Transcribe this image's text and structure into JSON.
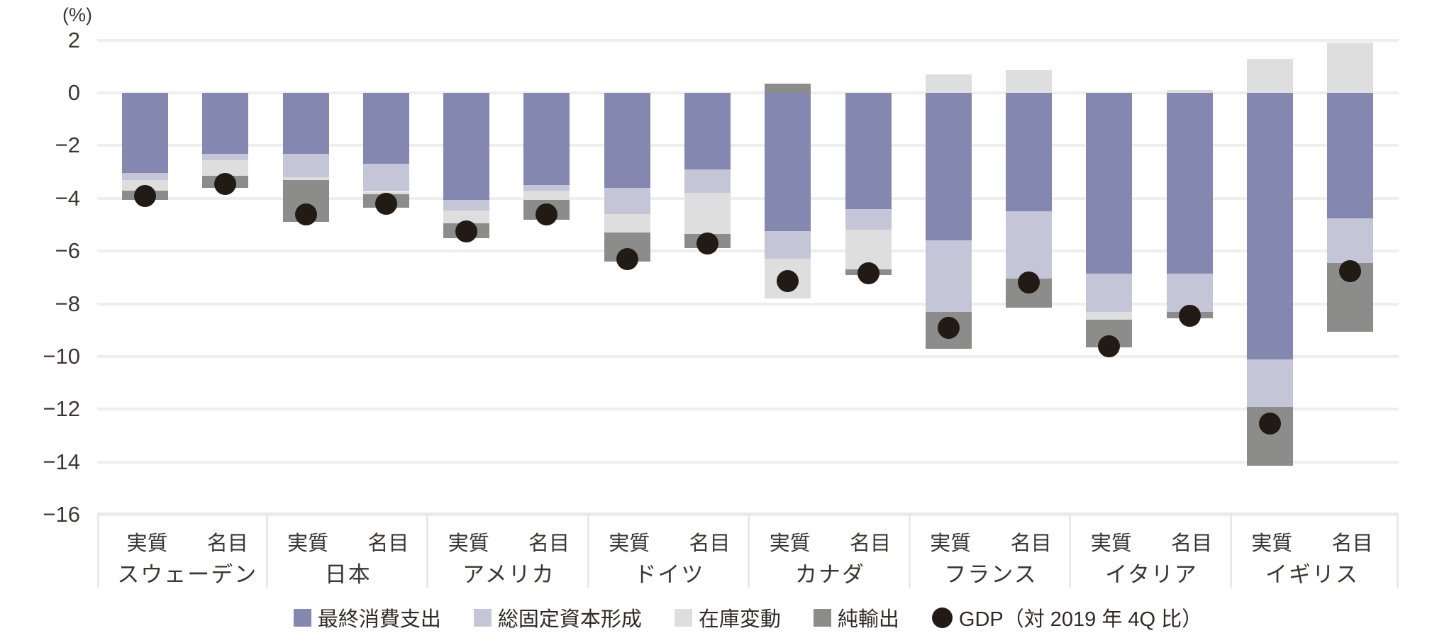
{
  "chart_data": {
    "type": "bar",
    "subtype": "stacked-bar-with-point-overlay",
    "title": "",
    "ylabel_unit": "(%)",
    "ylim": [
      -16,
      2
    ],
    "yticks": [
      2,
      0,
      -2,
      -4,
      -6,
      -8,
      -10,
      -12,
      -14,
      -16
    ],
    "grid": true,
    "legend_position": "bottom-center",
    "bar_type_labels": [
      "実質",
      "名目"
    ],
    "colors": {
      "consumption": "#8487b0",
      "gfcf": "#c4c6d7",
      "inventory": "#dedede",
      "net_exports": "#8c8c8a",
      "gdp": "#221a14",
      "gridline": "#eeeeee",
      "divider": "#e9e9e9"
    },
    "legend": [
      {
        "key": "consumption",
        "label": "最終消費支出"
      },
      {
        "key": "gfcf",
        "label": "総固定資本形成"
      },
      {
        "key": "inventory",
        "label": "在庫変動"
      },
      {
        "key": "net_exports",
        "label": "純輸出"
      },
      {
        "key": "gdp",
        "label": "GDP（対 2019 年 4Q 比）"
      }
    ],
    "segment_order": [
      "consumption",
      "gfcf",
      "inventory",
      "net_exports"
    ],
    "groups": [
      {
        "country": "スウェーデン",
        "bars": [
          {
            "label": "実質",
            "consumption": -3.05,
            "gfcf": -0.25,
            "inventory": -0.4,
            "net_exports": -0.35,
            "gdp": -3.9
          },
          {
            "label": "名目",
            "consumption": -2.3,
            "gfcf": -0.25,
            "inventory": -0.6,
            "net_exports": -0.45,
            "gdp": -3.45
          }
        ]
      },
      {
        "country": "日本",
        "bars": [
          {
            "label": "実質",
            "consumption": -2.3,
            "gfcf": -0.9,
            "inventory": -0.1,
            "net_exports": -1.6,
            "gdp": -4.6
          },
          {
            "label": "名目",
            "consumption": -2.7,
            "gfcf": -1.05,
            "inventory": -0.1,
            "net_exports": -0.5,
            "gdp": -4.2
          }
        ]
      },
      {
        "country": "アメリカ",
        "bars": [
          {
            "label": "実質",
            "consumption": -4.05,
            "gfcf": -0.4,
            "inventory": -0.5,
            "net_exports": -0.55,
            "gdp": -5.25
          },
          {
            "label": "名目",
            "consumption": -3.5,
            "gfcf": -0.2,
            "inventory": -0.35,
            "net_exports": -0.75,
            "gdp": -4.6
          }
        ]
      },
      {
        "country": "ドイツ",
        "bars": [
          {
            "label": "実質",
            "consumption": -3.6,
            "gfcf": -1.0,
            "inventory": -0.7,
            "net_exports": -1.1,
            "gdp": -6.3
          },
          {
            "label": "名目",
            "consumption": -2.9,
            "gfcf": -0.9,
            "inventory": -1.55,
            "net_exports": -0.55,
            "gdp": -5.7
          }
        ]
      },
      {
        "country": "カナダ",
        "bars": [
          {
            "label": "実質",
            "consumption": -5.25,
            "gfcf": -1.05,
            "inventory": -1.5,
            "net_exports": 0.35,
            "gdp": -7.15
          },
          {
            "label": "名目",
            "consumption": -4.4,
            "gfcf": -0.8,
            "inventory": -1.5,
            "net_exports": -0.2,
            "gdp": -6.85
          }
        ]
      },
      {
        "country": "フランス",
        "bars": [
          {
            "label": "実質",
            "consumption": -5.6,
            "gfcf": -2.7,
            "inventory": 0.7,
            "net_exports": -1.4,
            "gdp": -8.9
          },
          {
            "label": "名目",
            "consumption": -4.5,
            "gfcf": -2.55,
            "inventory": 0.85,
            "net_exports": -1.1,
            "gdp": -7.2
          }
        ]
      },
      {
        "country": "イタリア",
        "bars": [
          {
            "label": "実質",
            "consumption": -6.85,
            "gfcf": -1.45,
            "inventory": -0.3,
            "net_exports": -1.05,
            "gdp": -9.6
          },
          {
            "label": "名目",
            "consumption": -6.85,
            "gfcf": -1.45,
            "inventory": 0.1,
            "net_exports": -0.25,
            "gdp": -8.45
          }
        ]
      },
      {
        "country": "イギリス",
        "bars": [
          {
            "label": "実質",
            "consumption": -10.1,
            "gfcf": -1.8,
            "inventory": 1.3,
            "net_exports": -2.25,
            "gdp": -12.55
          },
          {
            "label": "名目",
            "consumption": -4.75,
            "gfcf": -1.7,
            "inventory": 1.9,
            "net_exports": -2.6,
            "gdp": -6.75
          }
        ]
      }
    ]
  }
}
